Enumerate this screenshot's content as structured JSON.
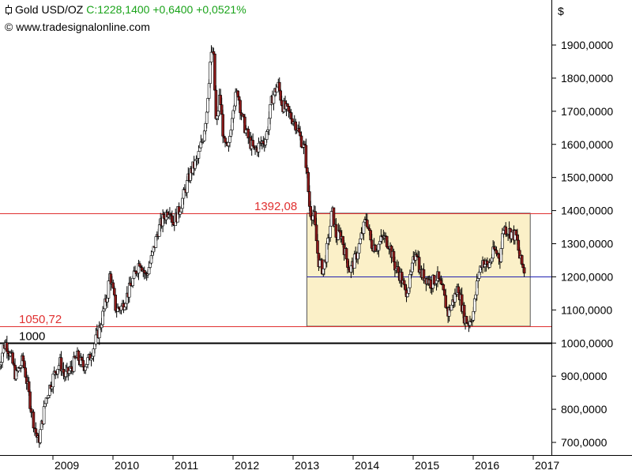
{
  "header": {
    "icon": "candlestick-icon",
    "instrument": "Gold USD/OZ",
    "quote": "C:1228,1400 +0,6400 +0,0521%",
    "copyright_icon": "©",
    "source": "www.tradesignalonline.com"
  },
  "chart_data": {
    "type": "candlestick",
    "title": "Gold USD/OZ",
    "ylabel": "$",
    "ylim": [
      670,
      1960
    ],
    "yticks": [
      700,
      800,
      900,
      1000,
      1100,
      1200,
      1300,
      1400,
      1500,
      1600,
      1700,
      1800,
      1900
    ],
    "ytick_labels": [
      "700,0000",
      "800,0000",
      "900,0000",
      "1000,0000",
      "1100,0000",
      "1200,0000",
      "1300,0000",
      "1400,0000",
      "1500,0000",
      "1600,0000",
      "1700,0000",
      "1800,0000",
      "1900,0000"
    ],
    "xlim": [
      2008.1,
      2017.35
    ],
    "xticks": [
      2009,
      2010,
      2011,
      2012,
      2013,
      2014,
      2015,
      2016,
      2017
    ],
    "xtick_labels": [
      "2009",
      "2010",
      "2011",
      "2012",
      "2013",
      "2014",
      "2015",
      "2016",
      "2017"
    ],
    "grid": false,
    "levels": [
      {
        "value": 1392.08,
        "label": "1392,08",
        "color": "#e03030"
      },
      {
        "value": 1050.72,
        "label": "1050,72",
        "color": "#e03030"
      },
      {
        "value": 1000,
        "label": "1000",
        "color": "#000000"
      },
      {
        "value": 1200,
        "label": "",
        "color": "#2020b0"
      }
    ],
    "range_box": {
      "x_start": 2013.23,
      "x_end": 2016.95,
      "y_low": 1050.72,
      "y_high": 1392.08,
      "fill": "#fbf0c8"
    },
    "price_path": [
      [
        2008.1,
        930
      ],
      [
        2008.18,
        990
      ],
      [
        2008.22,
        1000
      ],
      [
        2008.3,
        960
      ],
      [
        2008.38,
        900
      ],
      [
        2008.5,
        950
      ],
      [
        2008.55,
        900
      ],
      [
        2008.62,
        820
      ],
      [
        2008.7,
        740
      ],
      [
        2008.76,
        700
      ],
      [
        2008.82,
        760
      ],
      [
        2008.88,
        830
      ],
      [
        2008.95,
        870
      ],
      [
        2009.05,
        920
      ],
      [
        2009.12,
        940
      ],
      [
        2009.2,
        900
      ],
      [
        2009.3,
        920
      ],
      [
        2009.4,
        960
      ],
      [
        2009.5,
        930
      ],
      [
        2009.6,
        950
      ],
      [
        2009.7,
        1000
      ],
      [
        2009.8,
        1060
      ],
      [
        2009.9,
        1140
      ],
      [
        2009.95,
        1210
      ],
      [
        2010.05,
        1100
      ],
      [
        2010.15,
        1110
      ],
      [
        2010.25,
        1150
      ],
      [
        2010.35,
        1200
      ],
      [
        2010.45,
        1250
      ],
      [
        2010.55,
        1200
      ],
      [
        2010.65,
        1260
      ],
      [
        2010.75,
        1340
      ],
      [
        2010.85,
        1380
      ],
      [
        2010.95,
        1410
      ],
      [
        2011.0,
        1360
      ],
      [
        2011.1,
        1400
      ],
      [
        2011.2,
        1460
      ],
      [
        2011.3,
        1520
      ],
      [
        2011.4,
        1550
      ],
      [
        2011.5,
        1620
      ],
      [
        2011.56,
        1700
      ],
      [
        2011.62,
        1850
      ],
      [
        2011.67,
        1890
      ],
      [
        2011.72,
        1650
      ],
      [
        2011.78,
        1750
      ],
      [
        2011.85,
        1600
      ],
      [
        2011.92,
        1580
      ],
      [
        2012.0,
        1720
      ],
      [
        2012.08,
        1760
      ],
      [
        2012.15,
        1680
      ],
      [
        2012.25,
        1620
      ],
      [
        2012.35,
        1580
      ],
      [
        2012.45,
        1600
      ],
      [
        2012.55,
        1620
      ],
      [
        2012.65,
        1740
      ],
      [
        2012.75,
        1780
      ],
      [
        2012.82,
        1720
      ],
      [
        2012.9,
        1700
      ],
      [
        2012.98,
        1680
      ],
      [
        2013.05,
        1660
      ],
      [
        2013.12,
        1620
      ],
      [
        2013.2,
        1580
      ],
      [
        2013.28,
        1400
      ],
      [
        2013.35,
        1380
      ],
      [
        2013.42,
        1250
      ],
      [
        2013.5,
        1220
      ],
      [
        2013.58,
        1300
      ],
      [
        2013.65,
        1400
      ],
      [
        2013.72,
        1320
      ],
      [
        2013.8,
        1330
      ],
      [
        2013.88,
        1260
      ],
      [
        2013.95,
        1220
      ],
      [
        2014.05,
        1260
      ],
      [
        2014.15,
        1330
      ],
      [
        2014.22,
        1380
      ],
      [
        2014.3,
        1300
      ],
      [
        2014.4,
        1290
      ],
      [
        2014.5,
        1320
      ],
      [
        2014.6,
        1300
      ],
      [
        2014.7,
        1230
      ],
      [
        2014.8,
        1200
      ],
      [
        2014.87,
        1150
      ],
      [
        2014.95,
        1190
      ],
      [
        2015.05,
        1290
      ],
      [
        2015.12,
        1210
      ],
      [
        2015.2,
        1200
      ],
      [
        2015.3,
        1180
      ],
      [
        2015.4,
        1200
      ],
      [
        2015.5,
        1150
      ],
      [
        2015.58,
        1090
      ],
      [
        2015.65,
        1120
      ],
      [
        2015.75,
        1170
      ],
      [
        2015.85,
        1080
      ],
      [
        2015.92,
        1060
      ],
      [
        2016.0,
        1090
      ],
      [
        2016.08,
        1200
      ],
      [
        2016.15,
        1250
      ],
      [
        2016.25,
        1230
      ],
      [
        2016.35,
        1280
      ],
      [
        2016.45,
        1260
      ],
      [
        2016.5,
        1350
      ],
      [
        2016.58,
        1340
      ],
      [
        2016.65,
        1330
      ],
      [
        2016.72,
        1320
      ],
      [
        2016.78,
        1250
      ],
      [
        2016.85,
        1220
      ]
    ]
  }
}
